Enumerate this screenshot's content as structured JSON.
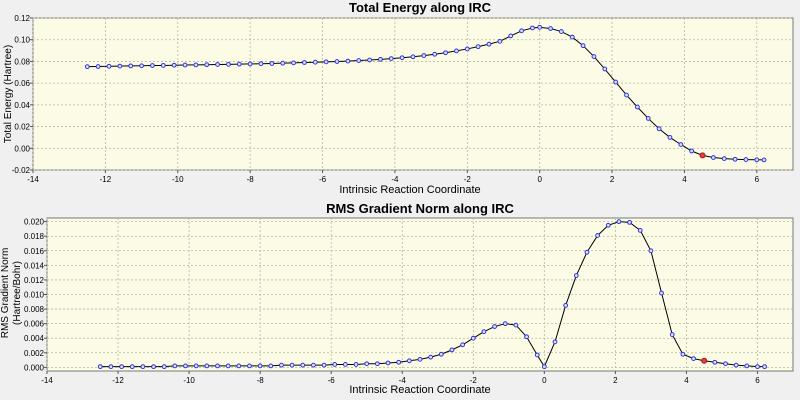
{
  "chart_data": [
    {
      "type": "line",
      "title": "Total Energy along IRC",
      "xlabel": "Intrinsic Reaction Coordinate",
      "ylabel": "Total Energy (Hartree)",
      "xlim": [
        -14,
        7
      ],
      "ylim": [
        -0.02,
        0.12
      ],
      "xticks": [
        "-14",
        "-12",
        "-10",
        "-8",
        "-6",
        "-4",
        "-2",
        "0",
        "2",
        "4",
        "6"
      ],
      "yticks": [
        "-0.02",
        "0.00",
        "0.02",
        "0.04",
        "0.06",
        "0.08",
        "0.10",
        "0.12"
      ],
      "grid": true,
      "series": [
        {
          "x": [
            -12.5,
            -12.2,
            -11.9,
            -11.6,
            -11.3,
            -11.0,
            -10.7,
            -10.4,
            -10.1,
            -9.8,
            -9.5,
            -9.2,
            -8.9,
            -8.6,
            -8.3,
            -8.0,
            -7.7,
            -7.4,
            -7.1,
            -6.8,
            -6.5,
            -6.2,
            -5.9,
            -5.6,
            -5.3,
            -5.0,
            -4.7,
            -4.4,
            -4.1,
            -3.8,
            -3.5,
            -3.2,
            -2.9,
            -2.6,
            -2.3,
            -2.0,
            -1.7,
            -1.4,
            -1.1,
            -0.8,
            -0.5,
            -0.2,
            0.0,
            0.3,
            0.6,
            0.9,
            1.2,
            1.5,
            1.8,
            2.1,
            2.4,
            2.7,
            3.0,
            3.3,
            3.6,
            3.9,
            4.2,
            4.5,
            4.8,
            5.1,
            5.4,
            5.7,
            6.0,
            6.2
          ],
          "y": [
            0.0752,
            0.0753,
            0.0755,
            0.0757,
            0.0759,
            0.076,
            0.0762,
            0.0763,
            0.0765,
            0.0767,
            0.0768,
            0.077,
            0.0772,
            0.0773,
            0.0775,
            0.0777,
            0.0779,
            0.0781,
            0.0784,
            0.0787,
            0.079,
            0.0793,
            0.0796,
            0.0799,
            0.0803,
            0.0808,
            0.0813,
            0.0819,
            0.0826,
            0.0834,
            0.0843,
            0.0854,
            0.0866,
            0.088,
            0.0897,
            0.0915,
            0.0936,
            0.0959,
            0.0985,
            0.1035,
            0.1082,
            0.1108,
            0.1114,
            0.1103,
            0.1075,
            0.1024,
            0.0945,
            0.0845,
            0.073,
            0.061,
            0.049,
            0.038,
            0.0275,
            0.018,
            0.01,
            0.0035,
            -0.0025,
            -0.0065,
            -0.0085,
            -0.0095,
            -0.0101,
            -0.0104,
            -0.0106,
            -0.0107
          ]
        }
      ],
      "highlight": {
        "x": 4.5,
        "y": -0.0065
      }
    },
    {
      "type": "line",
      "title": "RMS Gradient Norm along IRC",
      "xlabel": "Intrinsic Reaction Coordinate",
      "ylabel": [
        "RMS Gradient Norm",
        "(Hartree/Bohr)"
      ],
      "xlim": [
        -14,
        7
      ],
      "ylim": [
        -0.0005,
        0.0205
      ],
      "xticks": [
        "-14",
        "-12",
        "-10",
        "-8",
        "-6",
        "-4",
        "-2",
        "0",
        "2",
        "4",
        "6"
      ],
      "yticks": [
        "0.000",
        "0.002",
        "0.004",
        "0.006",
        "0.008",
        "0.010",
        "0.012",
        "0.014",
        "0.016",
        "0.018",
        "0.020"
      ],
      "grid": true,
      "series": [
        {
          "x": [
            -12.5,
            -12.2,
            -11.9,
            -11.6,
            -11.3,
            -11.0,
            -10.7,
            -10.4,
            -10.1,
            -9.8,
            -9.5,
            -9.2,
            -8.9,
            -8.6,
            -8.3,
            -8.0,
            -7.7,
            -7.4,
            -7.1,
            -6.8,
            -6.5,
            -6.2,
            -5.9,
            -5.6,
            -5.3,
            -5.0,
            -4.7,
            -4.4,
            -4.1,
            -3.8,
            -3.5,
            -3.2,
            -2.9,
            -2.6,
            -2.3,
            -2.0,
            -1.7,
            -1.4,
            -1.1,
            -0.8,
            -0.5,
            -0.2,
            0.0,
            0.3,
            0.6,
            0.9,
            1.2,
            1.5,
            1.8,
            2.1,
            2.4,
            2.7,
            3.0,
            3.3,
            3.6,
            3.9,
            4.2,
            4.5,
            4.8,
            5.1,
            5.4,
            5.7,
            6.0,
            6.2
          ],
          "y": [
            0.0001,
            0.0001,
            0.0001,
            0.0001,
            0.0001,
            0.0001,
            0.0001,
            0.0002,
            0.0002,
            0.0002,
            0.0002,
            0.0002,
            0.0002,
            0.0002,
            0.0002,
            0.0002,
            0.0002,
            0.0003,
            0.0003,
            0.0003,
            0.0003,
            0.0003,
            0.0004,
            0.0004,
            0.0004,
            0.0005,
            0.0005,
            0.0006,
            0.0007,
            0.0009,
            0.0011,
            0.0014,
            0.0018,
            0.0024,
            0.0031,
            0.004,
            0.0049,
            0.0056,
            0.006,
            0.0058,
            0.0042,
            0.0017,
            0.0001,
            0.0035,
            0.0085,
            0.0126,
            0.0158,
            0.0181,
            0.0195,
            0.02,
            0.0199,
            0.0188,
            0.016,
            0.0102,
            0.0045,
            0.0018,
            0.0012,
            0.0009,
            0.0007,
            0.0005,
            0.0003,
            0.0002,
            0.0001,
            0.0001
          ]
        }
      ],
      "highlight": {
        "x": 4.5,
        "y": 0.0009
      }
    }
  ],
  "colors": {
    "background": "#f0f0f0",
    "plot_area": "#fcfce6",
    "grid": "#b7b7a0",
    "line": "#000000",
    "marker": "#2b36d8",
    "highlight": "#e23a3a"
  }
}
